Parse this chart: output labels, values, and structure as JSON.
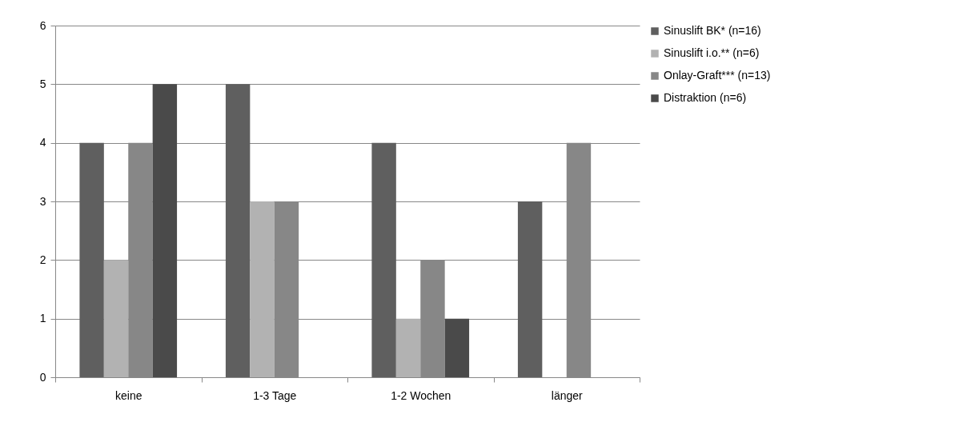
{
  "chart_data": {
    "type": "bar",
    "categories": [
      "keine",
      "1-3 Tage",
      "1-2 Wochen",
      "länger"
    ],
    "series": [
      {
        "name": "Sinuslift BK* (n=16)",
        "color": "#5f5f5f",
        "values": [
          4,
          5,
          4,
          3
        ]
      },
      {
        "name": "Sinuslift i.o.** (n=6)",
        "color": "#b2b2b2",
        "values": [
          2,
          3,
          1,
          0
        ]
      },
      {
        "name": "Onlay-Graft*** (n=13)",
        "color": "#878787",
        "values": [
          4,
          3,
          2,
          4
        ]
      },
      {
        "name": "Distraktion (n=6)",
        "color": "#4a4a4a",
        "values": [
          5,
          0,
          1,
          0
        ]
      }
    ],
    "ylim": [
      0,
      6
    ],
    "yticks": [
      0,
      1,
      2,
      3,
      4,
      5,
      6
    ],
    "grid": "y",
    "legend": "right"
  }
}
